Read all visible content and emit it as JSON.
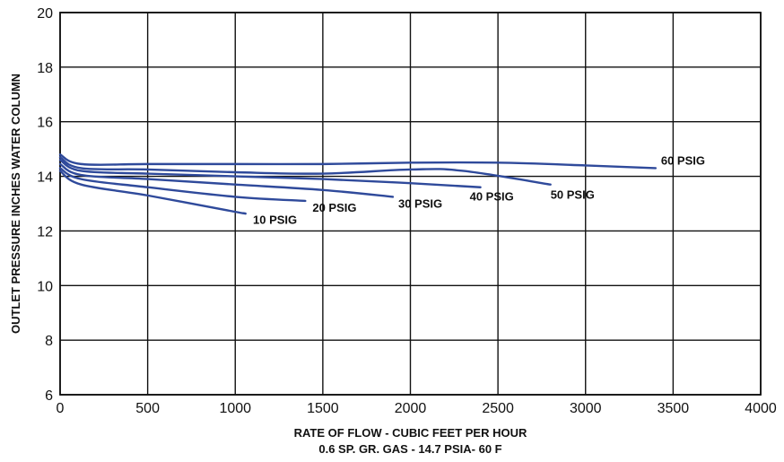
{
  "chart_data": {
    "type": "line",
    "title": "",
    "xlabel": "RATE OF FLOW - CUBIC FEET PER HOUR",
    "xlabel_sub": "0.6 SP. GR. GAS - 14.7 PSIA- 60 F",
    "ylabel": "OUTLET PRESSURE INCHES WATER COLUMN",
    "xlim": [
      0,
      4000
    ],
    "ylim": [
      6,
      20
    ],
    "xticks": [
      "0",
      "500",
      "1000",
      "1500",
      "2000",
      "2500",
      "3000",
      "3500",
      "4000"
    ],
    "yticks": [
      "6",
      "8",
      "10",
      "12",
      "14",
      "16",
      "18",
      "20"
    ],
    "grid": true,
    "line_color": "#2f4a9b",
    "series": [
      {
        "name": "10 PSIG",
        "x": [
          0,
          120,
          500,
          1000,
          1050
        ],
        "y": [
          14.2,
          13.7,
          13.3,
          12.7,
          12.65
        ]
      },
      {
        "name": "20 PSIG",
        "x": [
          0,
          120,
          500,
          1000,
          1400
        ],
        "y": [
          14.3,
          13.9,
          13.6,
          13.25,
          13.1
        ]
      },
      {
        "name": "30 PSIG",
        "x": [
          0,
          120,
          500,
          1000,
          1500,
          1900
        ],
        "y": [
          14.45,
          14.05,
          13.9,
          13.7,
          13.5,
          13.25
        ]
      },
      {
        "name": "40 PSIG",
        "x": [
          0,
          120,
          500,
          1000,
          1500,
          2000,
          2400
        ],
        "y": [
          14.6,
          14.2,
          14.1,
          14.0,
          13.9,
          13.75,
          13.6
        ]
      },
      {
        "name": "50 PSIG",
        "x": [
          0,
          120,
          500,
          1000,
          1500,
          2000,
          2300,
          2800
        ],
        "y": [
          14.7,
          14.3,
          14.25,
          14.15,
          14.1,
          14.25,
          14.2,
          13.7
        ]
      },
      {
        "name": "60 PSIG",
        "x": [
          0,
          120,
          500,
          1000,
          1500,
          2000,
          2500,
          3000,
          3400
        ],
        "y": [
          14.8,
          14.45,
          14.45,
          14.45,
          14.45,
          14.5,
          14.5,
          14.4,
          14.3
        ]
      }
    ]
  }
}
